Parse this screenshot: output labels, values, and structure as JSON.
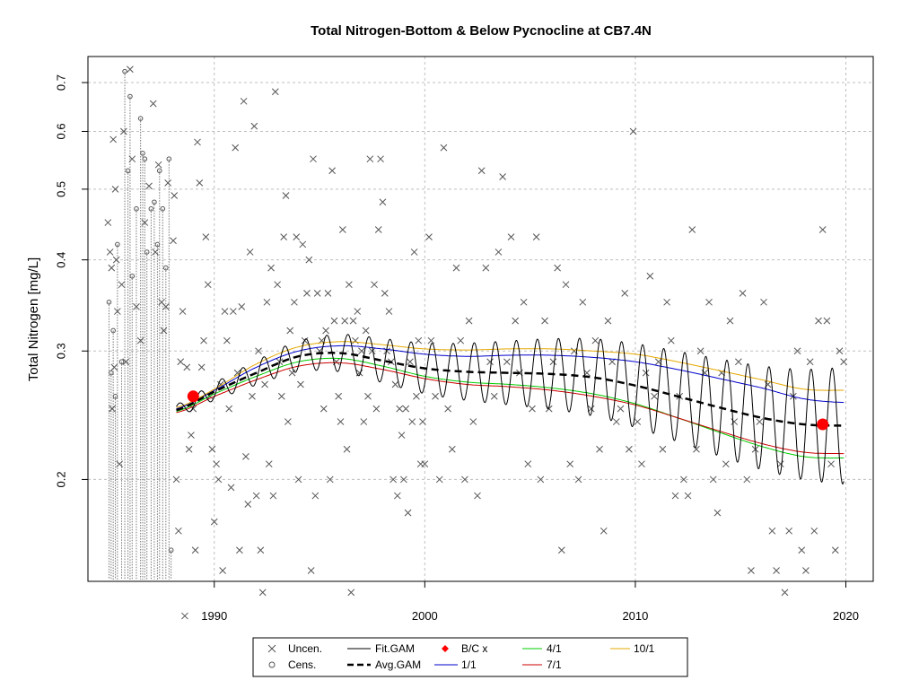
{
  "chart_data": {
    "type": "scatter",
    "title": "Total Nitrogen-Bottom & Below Pycnocline at CB7.4N",
    "xlabel": "",
    "ylabel": "Total Nitrogen [mg/L]",
    "xlim": [
      1984.0,
      2021.3
    ],
    "ylim": [
      0.145,
      0.76
    ],
    "y_scale": "log",
    "grid": true,
    "x_ticks": [
      1990,
      2000,
      2010,
      2020
    ],
    "y_ticks": [
      0.2,
      0.3,
      0.4,
      0.5,
      0.6,
      0.7
    ],
    "x_tick_labels": [
      "1990",
      "2000",
      "2010",
      "2020"
    ],
    "y_tick_labels": [
      "0.2",
      "0.3",
      "0.4",
      "0.5",
      "0.6",
      "0.7"
    ],
    "legend_position": "bottom",
    "legend": {
      "uncen": "Uncen.",
      "cens": "Cens.",
      "fit": "Fit.GAM",
      "avg": "Avg.GAM",
      "bc": "B/C x",
      "r1": "1/1",
      "r4": "4/1",
      "r7": "7/1",
      "r10": "10/1"
    },
    "colors": {
      "points": "#555555",
      "fit": "#000000",
      "avg": "#000000",
      "bc": "#ff0000",
      "r1": "#0000cc",
      "r4": "#00cc00",
      "r7": "#cc0000",
      "r10": "#e6a800",
      "grid": "#bfbfbf"
    },
    "uncensored": [
      [
        1984.95,
        0.45
      ],
      [
        1985.05,
        0.41
      ],
      [
        1985.12,
        0.39
      ],
      [
        1985.2,
        0.585
      ],
      [
        1985.3,
        0.5
      ],
      [
        1985.35,
        0.4
      ],
      [
        1985.15,
        0.25
      ],
      [
        1985.25,
        0.285
      ],
      [
        1985.4,
        0.34
      ],
      [
        1985.5,
        0.21
      ],
      [
        1985.6,
        0.37
      ],
      [
        1985.7,
        0.6
      ],
      [
        1985.8,
        0.29
      ],
      [
        1986.0,
        0.73
      ],
      [
        1986.1,
        0.55
      ],
      [
        1986.3,
        0.345
      ],
      [
        1986.5,
        0.31
      ],
      [
        1986.7,
        0.45
      ],
      [
        1986.9,
        0.505
      ],
      [
        1987.1,
        0.655
      ],
      [
        1987.2,
        0.41
      ],
      [
        1987.35,
        0.54
      ],
      [
        1987.5,
        0.35
      ],
      [
        1987.6,
        0.32
      ],
      [
        1987.7,
        0.345
      ],
      [
        1987.8,
        0.51
      ],
      [
        1988.05,
        0.425
      ],
      [
        1988.1,
        0.49
      ],
      [
        1988.2,
        0.2
      ],
      [
        1988.3,
        0.17
      ],
      [
        1988.4,
        0.29
      ],
      [
        1988.5,
        0.34
      ],
      [
        1988.6,
        0.13
      ],
      [
        1988.7,
        0.285
      ],
      [
        1988.8,
        0.22
      ],
      [
        1988.9,
        0.23
      ],
      [
        1989.0,
        0.25
      ],
      [
        1989.1,
        0.16
      ],
      [
        1989.2,
        0.58
      ],
      [
        1989.3,
        0.51
      ],
      [
        1989.4,
        0.285
      ],
      [
        1989.5,
        0.31
      ],
      [
        1989.6,
        0.43
      ],
      [
        1989.7,
        0.37
      ],
      [
        1989.8,
        0.26
      ],
      [
        1989.9,
        0.22
      ],
      [
        1990.0,
        0.175
      ],
      [
        1990.1,
        0.21
      ],
      [
        1990.2,
        0.2
      ],
      [
        1990.3,
        0.27
      ],
      [
        1990.4,
        0.15
      ],
      [
        1990.5,
        0.34
      ],
      [
        1990.6,
        0.31
      ],
      [
        1990.7,
        0.25
      ],
      [
        1990.8,
        0.195
      ],
      [
        1990.9,
        0.34
      ],
      [
        1991.0,
        0.57
      ],
      [
        1991.1,
        0.28
      ],
      [
        1991.2,
        0.16
      ],
      [
        1991.3,
        0.345
      ],
      [
        1991.4,
        0.66
      ],
      [
        1991.5,
        0.215
      ],
      [
        1991.6,
        0.185
      ],
      [
        1991.7,
        0.41
      ],
      [
        1991.8,
        0.26
      ],
      [
        1991.9,
        0.61
      ],
      [
        1992.0,
        0.19
      ],
      [
        1992.1,
        0.3
      ],
      [
        1992.2,
        0.16
      ],
      [
        1992.3,
        0.14
      ],
      [
        1992.4,
        0.27
      ],
      [
        1992.5,
        0.35
      ],
      [
        1992.6,
        0.21
      ],
      [
        1992.7,
        0.39
      ],
      [
        1992.8,
        0.19
      ],
      [
        1992.9,
        0.68
      ],
      [
        1993.0,
        0.37
      ],
      [
        1993.1,
        0.29
      ],
      [
        1993.2,
        0.26
      ],
      [
        1993.3,
        0.43
      ],
      [
        1993.4,
        0.49
      ],
      [
        1993.5,
        0.24
      ],
      [
        1993.6,
        0.32
      ],
      [
        1993.7,
        0.28
      ],
      [
        1993.8,
        0.35
      ],
      [
        1993.9,
        0.43
      ],
      [
        1994.0,
        0.2
      ],
      [
        1994.1,
        0.27
      ],
      [
        1994.2,
        0.42
      ],
      [
        1994.3,
        0.31
      ],
      [
        1994.4,
        0.36
      ],
      [
        1994.5,
        0.4
      ],
      [
        1994.6,
        0.15
      ],
      [
        1994.7,
        0.55
      ],
      [
        1994.8,
        0.19
      ],
      [
        1994.9,
        0.36
      ],
      [
        1995.0,
        0.3
      ],
      [
        1995.1,
        0.31
      ],
      [
        1995.2,
        0.25
      ],
      [
        1995.3,
        0.32
      ],
      [
        1995.4,
        0.36
      ],
      [
        1995.5,
        0.2
      ],
      [
        1995.6,
        0.53
      ],
      [
        1995.7,
        0.33
      ],
      [
        1995.8,
        0.29
      ],
      [
        1995.9,
        0.26
      ],
      [
        1996.0,
        0.24
      ],
      [
        1996.1,
        0.44
      ],
      [
        1996.2,
        0.33
      ],
      [
        1996.3,
        0.22
      ],
      [
        1996.4,
        0.37
      ],
      [
        1996.5,
        0.14
      ],
      [
        1996.6,
        0.33
      ],
      [
        1996.7,
        0.31
      ],
      [
        1996.8,
        0.34
      ],
      [
        1996.9,
        0.28
      ],
      [
        1997.0,
        0.3
      ],
      [
        1997.1,
        0.24
      ],
      [
        1997.2,
        0.32
      ],
      [
        1997.3,
        0.26
      ],
      [
        1997.4,
        0.55
      ],
      [
        1997.5,
        0.3
      ],
      [
        1997.6,
        0.37
      ],
      [
        1997.7,
        0.25
      ],
      [
        1997.8,
        0.44
      ],
      [
        1997.9,
        0.55
      ],
      [
        1998.0,
        0.48
      ],
      [
        1998.1,
        0.36
      ],
      [
        1998.2,
        0.3
      ],
      [
        1998.3,
        0.34
      ],
      [
        1998.4,
        0.29
      ],
      [
        1998.5,
        0.2
      ],
      [
        1998.6,
        0.27
      ],
      [
        1998.7,
        0.19
      ],
      [
        1998.8,
        0.25
      ],
      [
        1998.9,
        0.23
      ],
      [
        1999.0,
        0.2
      ],
      [
        1999.1,
        0.25
      ],
      [
        1999.2,
        0.18
      ],
      [
        1999.3,
        0.29
      ],
      [
        1999.4,
        0.24
      ],
      [
        1999.5,
        0.41
      ],
      [
        1999.6,
        0.26
      ],
      [
        1999.7,
        0.31
      ],
      [
        1999.8,
        0.21
      ],
      [
        1999.9,
        0.24
      ],
      [
        2000.0,
        0.21
      ],
      [
        2000.2,
        0.43
      ],
      [
        2000.3,
        0.31
      ],
      [
        2000.5,
        0.26
      ],
      [
        2000.7,
        0.2
      ],
      [
        2000.9,
        0.57
      ],
      [
        2001.1,
        0.25
      ],
      [
        2001.3,
        0.22
      ],
      [
        2001.5,
        0.39
      ],
      [
        2001.7,
        0.31
      ],
      [
        2001.9,
        0.2
      ],
      [
        2002.1,
        0.33
      ],
      [
        2002.3,
        0.24
      ],
      [
        2002.5,
        0.19
      ],
      [
        2002.7,
        0.53
      ],
      [
        2002.9,
        0.39
      ],
      [
        2003.1,
        0.29
      ],
      [
        2003.3,
        0.26
      ],
      [
        2003.5,
        0.41
      ],
      [
        2003.7,
        0.52
      ],
      [
        2003.9,
        0.29
      ],
      [
        2004.1,
        0.43
      ],
      [
        2004.3,
        0.33
      ],
      [
        2004.5,
        0.28
      ],
      [
        2004.7,
        0.35
      ],
      [
        2004.9,
        0.21
      ],
      [
        2005.1,
        0.25
      ],
      [
        2005.3,
        0.43
      ],
      [
        2005.5,
        0.2
      ],
      [
        2005.7,
        0.33
      ],
      [
        2005.9,
        0.25
      ],
      [
        2006.1,
        0.29
      ],
      [
        2006.3,
        0.39
      ],
      [
        2006.5,
        0.16
      ],
      [
        2006.7,
        0.37
      ],
      [
        2006.9,
        0.21
      ],
      [
        2007.1,
        0.3
      ],
      [
        2007.3,
        0.2
      ],
      [
        2007.5,
        0.35
      ],
      [
        2007.7,
        0.28
      ],
      [
        2007.9,
        0.25
      ],
      [
        2008.1,
        0.31
      ],
      [
        2008.3,
        0.22
      ],
      [
        2008.5,
        0.17
      ],
      [
        2008.7,
        0.33
      ],
      [
        2008.9,
        0.29
      ],
      [
        2009.1,
        0.24
      ],
      [
        2009.3,
        0.25
      ],
      [
        2009.5,
        0.36
      ],
      [
        2009.7,
        0.22
      ],
      [
        2009.9,
        0.6
      ],
      [
        2010.1,
        0.24
      ],
      [
        2010.3,
        0.21
      ],
      [
        2010.5,
        0.28
      ],
      [
        2010.7,
        0.38
      ],
      [
        2010.9,
        0.26
      ],
      [
        2011.1,
        0.29
      ],
      [
        2011.3,
        0.22
      ],
      [
        2011.5,
        0.35
      ],
      [
        2011.7,
        0.31
      ],
      [
        2011.9,
        0.19
      ],
      [
        2012.1,
        0.26
      ],
      [
        2012.3,
        0.2
      ],
      [
        2012.5,
        0.19
      ],
      [
        2012.7,
        0.44
      ],
      [
        2012.9,
        0.22
      ],
      [
        2013.1,
        0.3
      ],
      [
        2013.3,
        0.28
      ],
      [
        2013.5,
        0.35
      ],
      [
        2013.7,
        0.2
      ],
      [
        2013.9,
        0.18
      ],
      [
        2014.1,
        0.28
      ],
      [
        2014.3,
        0.21
      ],
      [
        2014.5,
        0.33
      ],
      [
        2014.7,
        0.24
      ],
      [
        2014.9,
        0.29
      ],
      [
        2015.1,
        0.36
      ],
      [
        2015.3,
        0.2
      ],
      [
        2015.5,
        0.15
      ],
      [
        2015.7,
        0.22
      ],
      [
        2015.9,
        0.24
      ],
      [
        2016.1,
        0.35
      ],
      [
        2016.3,
        0.27
      ],
      [
        2016.5,
        0.17
      ],
      [
        2016.7,
        0.15
      ],
      [
        2016.9,
        0.21
      ],
      [
        2017.1,
        0.14
      ],
      [
        2017.3,
        0.17
      ],
      [
        2017.5,
        0.26
      ],
      [
        2017.7,
        0.3
      ],
      [
        2017.9,
        0.16
      ],
      [
        2018.1,
        0.15
      ],
      [
        2018.3,
        0.29
      ],
      [
        2018.5,
        0.17
      ],
      [
        2018.7,
        0.33
      ],
      [
        2018.9,
        0.44
      ],
      [
        2019.1,
        0.33
      ],
      [
        2019.3,
        0.21
      ],
      [
        2019.5,
        0.16
      ],
      [
        2019.7,
        0.3
      ],
      [
        2019.9,
        0.29
      ]
    ],
    "censored": [
      [
        1985.0,
        0.35
      ],
      [
        1985.1,
        0.28
      ],
      [
        1985.2,
        0.32
      ],
      [
        1985.3,
        0.26
      ],
      [
        1985.4,
        0.42
      ],
      [
        1985.6,
        0.29
      ],
      [
        1985.75,
        0.725
      ],
      [
        1985.9,
        0.53
      ],
      [
        1986.0,
        0.67
      ],
      [
        1986.1,
        0.38
      ],
      [
        1986.3,
        0.47
      ],
      [
        1986.5,
        0.625
      ],
      [
        1986.6,
        0.56
      ],
      [
        1986.7,
        0.55
      ],
      [
        1986.8,
        0.41
      ],
      [
        1987.0,
        0.47
      ],
      [
        1987.15,
        0.48
      ],
      [
        1987.3,
        0.42
      ],
      [
        1987.4,
        0.53
      ],
      [
        1987.55,
        0.47
      ],
      [
        1987.7,
        0.39
      ],
      [
        1987.85,
        0.55
      ],
      [
        1987.95,
        0.16
      ]
    ],
    "series": [
      {
        "name": "1/1",
        "x": [
          1988.2,
          1990,
          1992,
          1994,
          1996,
          1998,
          2000,
          2002,
          2004,
          2006,
          2008,
          2010,
          2012,
          2014,
          2016,
          2018,
          2019.9
        ],
        "values": [
          0.25,
          0.265,
          0.285,
          0.3,
          0.305,
          0.302,
          0.297,
          0.295,
          0.296,
          0.296,
          0.294,
          0.29,
          0.283,
          0.275,
          0.267,
          0.258,
          0.255
        ]
      },
      {
        "name": "4/1",
        "x": [
          1988.2,
          1990,
          1992,
          1994,
          1996,
          1998,
          2000,
          2002,
          2004,
          2006,
          2008,
          2010,
          2012,
          2014,
          2016,
          2018,
          2019.9
        ],
        "values": [
          0.248,
          0.262,
          0.277,
          0.29,
          0.293,
          0.286,
          0.277,
          0.272,
          0.27,
          0.267,
          0.262,
          0.254,
          0.243,
          0.232,
          0.222,
          0.215,
          0.214
        ]
      },
      {
        "name": "7/1",
        "x": [
          1988.2,
          1990,
          1992,
          1994,
          1996,
          1998,
          2000,
          2002,
          2004,
          2006,
          2008,
          2010,
          2012,
          2014,
          2016,
          2018,
          2019.9
        ],
        "values": [
          0.247,
          0.26,
          0.274,
          0.286,
          0.289,
          0.283,
          0.275,
          0.27,
          0.268,
          0.265,
          0.26,
          0.253,
          0.243,
          0.233,
          0.224,
          0.218,
          0.217
        ]
      },
      {
        "name": "10/1",
        "x": [
          1988.2,
          1990,
          1992,
          1994,
          1996,
          1998,
          2000,
          2002,
          2004,
          2006,
          2008,
          2010,
          2012,
          2014,
          2016,
          2018,
          2019.9
        ],
        "values": [
          0.251,
          0.266,
          0.288,
          0.304,
          0.309,
          0.306,
          0.302,
          0.301,
          0.302,
          0.302,
          0.3,
          0.297,
          0.29,
          0.282,
          0.274,
          0.266,
          0.265
        ]
      },
      {
        "name": "Avg.GAM",
        "x": [
          1988.2,
          1990,
          1992,
          1994,
          1996,
          1998,
          2000,
          2002,
          2004,
          2006,
          2008,
          2010,
          2012,
          2014,
          2016,
          2018,
          2019.9
        ],
        "values": [
          0.249,
          0.264,
          0.28,
          0.295,
          0.298,
          0.291,
          0.284,
          0.281,
          0.28,
          0.279,
          0.276,
          0.269,
          0.26,
          0.251,
          0.243,
          0.238,
          0.237
        ]
      }
    ],
    "fit_gam": {
      "name": "Fit.GAM",
      "x_start": 1988.2,
      "x_end": 2019.9,
      "cycles_per_year": 1,
      "amplitude_log10_start": 0.008,
      "amplitude_log10_end": 0.08
    },
    "bc_points": [
      [
        1989.0,
        0.26
      ],
      [
        2018.9,
        0.238
      ]
    ]
  }
}
